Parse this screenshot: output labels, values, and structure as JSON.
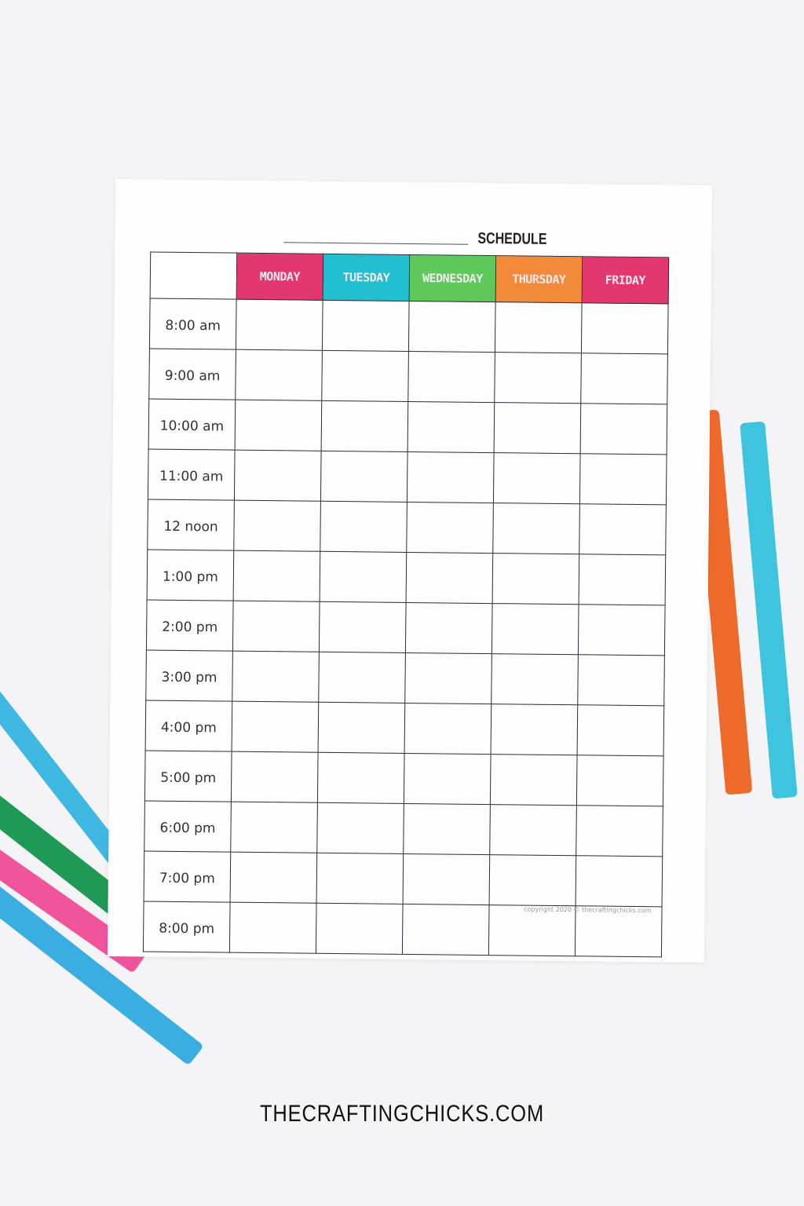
{
  "sheet": {
    "title": "SCHEDULE",
    "days": [
      {
        "label": "MONDAY",
        "color": "#e2376f"
      },
      {
        "label": "TUESDAY",
        "color": "#22bfd0"
      },
      {
        "label": "WEDNESDAY",
        "color": "#5ec85a"
      },
      {
        "label": "THURSDAY",
        "color": "#f28a3a"
      },
      {
        "label": "FRIDAY",
        "color": "#e2376f"
      }
    ],
    "times": [
      "8:00 am",
      "9:00 am",
      "10:00 am",
      "11:00 am",
      "12 noon",
      "1:00 pm",
      "2:00 pm",
      "3:00 pm",
      "4:00 pm",
      "5:00 pm",
      "6:00 pm",
      "7:00 pm",
      "8:00 pm"
    ],
    "copyright": "copyright 2020 © thecraftingchicks.com"
  },
  "pens": [
    {
      "color": "#ee6a2a"
    },
    {
      "color": "#3ec4de"
    },
    {
      "color": "#3fb7e3"
    },
    {
      "color": "#1f9a55"
    },
    {
      "color": "#f0559b"
    },
    {
      "color": "#3aaee0"
    }
  ],
  "footer": "THECRAFTINGCHICKS.COM"
}
